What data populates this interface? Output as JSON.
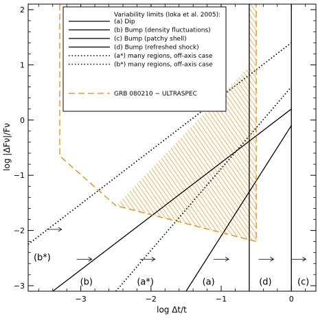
{
  "chart_data": {
    "type": "line",
    "xlabel": "log Δt/t",
    "ylabel": "log |ΔFν|/Fν",
    "xlim": [
      -3.75,
      0.35
    ],
    "ylim": [
      -3.1,
      2.1
    ],
    "x_ticks": [
      -3,
      -2,
      -1,
      0
    ],
    "x_tick_labels": [
      "−3",
      "−2",
      "−1",
      "0"
    ],
    "y_ticks": [
      -3,
      -2,
      -1,
      0,
      1,
      2
    ],
    "y_tick_labels": [
      "−3",
      "−2",
      "−1",
      "0",
      "1",
      "2"
    ],
    "grid": false,
    "legend": {
      "position": "top-right",
      "title": "Variability limits (Ioka et al. 2005):",
      "entries": [
        {
          "label": "(a) Dip",
          "style": "solid"
        },
        {
          "label": "(b) Bump (density fluctuations)",
          "style": "solid"
        },
        {
          "label": "(c) Bump (patchy shell)",
          "style": "solid"
        },
        {
          "label": "(d) Bump (refreshed shock)",
          "style": "solid"
        },
        {
          "label": "(a*) many regions, off-axis case",
          "style": "dotted"
        },
        {
          "label": "(b*) many regions, off-axis case",
          "style": "dotted"
        },
        {
          "label": "GRB 080210 − ULTRASPEC",
          "style": "dashed",
          "color": "#ee8800"
        }
      ]
    },
    "series": [
      {
        "name": "(a) Dip",
        "style": "solid",
        "x": [
          -1.5,
          0
        ],
        "y": [
          -3.1,
          -0.1
        ]
      },
      {
        "name": "(b) Bump (density fluctuations)",
        "style": "solid",
        "x": [
          -3.4,
          0
        ],
        "y": [
          -3.1,
          0.2
        ]
      },
      {
        "name": "(c) Bump (patchy shell)",
        "style": "vertical",
        "x": [
          0,
          0
        ],
        "y": [
          -3.1,
          2.1
        ]
      },
      {
        "name": "(d) Bump (refreshed shock)",
        "style": "vertical",
        "x": [
          -0.6,
          -0.6
        ],
        "y": [
          -3.1,
          2.1
        ]
      },
      {
        "name": "(a*) many regions, off-axis case",
        "style": "dotted",
        "x": [
          -2.5,
          0
        ],
        "y": [
          -3.1,
          0.6
        ]
      },
      {
        "name": "(b*) many regions, off-axis case",
        "style": "dotted",
        "x": [
          -3.75,
          0
        ],
        "y": [
          -2.25,
          1.4
        ]
      },
      {
        "name": "GRB 080210 − ULTRASPEC",
        "style": "dashed",
        "color": "#ee8800",
        "x": [
          -3.3,
          -3.3,
          -2.5,
          -0.5,
          -0.5,
          -0.6,
          -0.6
        ],
        "y": [
          2.1,
          -0.65,
          -1.55,
          -2.2,
          2.1,
          2.1,
          2.1
        ]
      }
    ],
    "hatched_region": {
      "color": "#ee8800",
      "x": [
        -2.5,
        -0.5,
        -0.5,
        -0.6,
        -0.6
      ],
      "y": [
        -1.55,
        -2.2,
        2.1,
        2.1,
        0.97
      ]
    },
    "annotations": [
      {
        "text": "(b*)",
        "x": -3.55,
        "y": -2.48
      },
      {
        "text": "(b)",
        "x": -2.92,
        "y": -2.92
      },
      {
        "text": "(a*)",
        "x": -2.08,
        "y": -2.92
      },
      {
        "text": "(a)",
        "x": -1.18,
        "y": -2.92
      },
      {
        "text": "(d)",
        "x": -0.37,
        "y": -2.92
      },
      {
        "text": "(c)",
        "x": 0.17,
        "y": -2.92
      }
    ],
    "arrows": [
      {
        "x": -3.38,
        "y": -1.98
      },
      {
        "x": -2.95,
        "y": -2.52
      },
      {
        "x": -2.05,
        "y": -2.52
      },
      {
        "x": -1.0,
        "y": -2.52
      },
      {
        "x": -0.36,
        "y": -2.52
      },
      {
        "x": 0.1,
        "y": -2.52
      }
    ]
  }
}
